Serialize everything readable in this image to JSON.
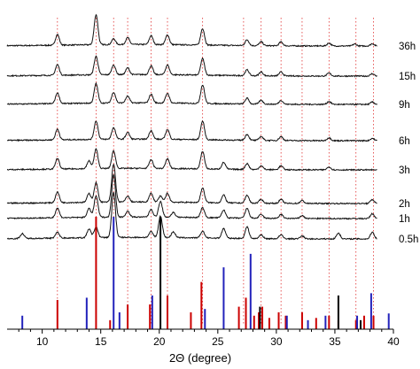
{
  "chart_data": {
    "type": "line",
    "xlabel": "2Θ (degree)",
    "xlim": [
      7,
      40
    ],
    "x_ticks": [
      10,
      15,
      20,
      25,
      30,
      35,
      40
    ],
    "grid": false,
    "legend": "none",
    "traces": [
      {
        "name": "36h",
        "peaks": [
          [
            11.3,
            0.55
          ],
          [
            14.6,
            1.55
          ],
          [
            16.1,
            0.3
          ],
          [
            17.3,
            0.35
          ],
          [
            19.3,
            0.45
          ],
          [
            20.7,
            0.5
          ],
          [
            23.7,
            0.85
          ],
          [
            27.5,
            0.3
          ],
          [
            28.7,
            0.2
          ],
          [
            30.4,
            0.2
          ],
          [
            34.5,
            0.15
          ],
          [
            36.7,
            0.1
          ],
          [
            38.2,
            0.12
          ]
        ]
      },
      {
        "name": "15h",
        "peaks": [
          [
            11.3,
            0.55
          ],
          [
            14.6,
            0.95
          ],
          [
            16.1,
            0.5
          ],
          [
            17.3,
            0.35
          ],
          [
            19.3,
            0.45
          ],
          [
            20.7,
            0.5
          ],
          [
            23.7,
            0.85
          ],
          [
            27.5,
            0.3
          ],
          [
            28.7,
            0.2
          ],
          [
            30.4,
            0.2
          ],
          [
            34.5,
            0.15
          ],
          [
            38.2,
            0.12
          ]
        ]
      },
      {
        "name": "9h",
        "peaks": [
          [
            11.3,
            0.55
          ],
          [
            14.6,
            1.0
          ],
          [
            16.1,
            0.55
          ],
          [
            17.3,
            0.35
          ],
          [
            19.3,
            0.45
          ],
          [
            20.7,
            0.5
          ],
          [
            23.7,
            0.95
          ],
          [
            27.5,
            0.3
          ],
          [
            28.7,
            0.2
          ],
          [
            30.4,
            0.2
          ],
          [
            34.5,
            0.15
          ],
          [
            38.2,
            0.12
          ]
        ]
      },
      {
        "name": "6h",
        "peaks": [
          [
            11.3,
            0.55
          ],
          [
            14.6,
            0.95
          ],
          [
            16.1,
            0.6
          ],
          [
            17.3,
            0.35
          ],
          [
            19.3,
            0.45
          ],
          [
            20.7,
            0.5
          ],
          [
            23.7,
            0.95
          ],
          [
            27.5,
            0.3
          ],
          [
            28.7,
            0.2
          ],
          [
            30.4,
            0.2
          ],
          [
            34.5,
            0.15
          ],
          [
            38.2,
            0.12
          ]
        ]
      },
      {
        "name": "3h",
        "peaks": [
          [
            11.3,
            0.55
          ],
          [
            14.0,
            0.4
          ],
          [
            14.6,
            1.0
          ],
          [
            16.1,
            0.9
          ],
          [
            19.3,
            0.45
          ],
          [
            20.7,
            0.5
          ],
          [
            23.7,
            0.9
          ],
          [
            25.5,
            0.35
          ],
          [
            27.5,
            0.3
          ],
          [
            28.7,
            0.2
          ],
          [
            30.4,
            0.2
          ],
          [
            34.5,
            0.15
          ]
        ]
      },
      {
        "name": "2h",
        "peaks": [
          [
            11.3,
            0.55
          ],
          [
            14.0,
            0.45
          ],
          [
            14.6,
            1.0
          ],
          [
            16.1,
            1.95
          ],
          [
            17.3,
            0.3
          ],
          [
            19.3,
            0.45
          ],
          [
            20.1,
            0.3
          ],
          [
            20.7,
            0.45
          ],
          [
            23.7,
            0.75
          ],
          [
            25.5,
            0.4
          ],
          [
            27.5,
            0.4
          ],
          [
            28.7,
            0.2
          ],
          [
            30.4,
            0.2
          ],
          [
            32.2,
            0.15
          ],
          [
            38.2,
            0.2
          ]
        ]
      },
      {
        "name": "1h",
        "peaks": [
          [
            11.3,
            0.5
          ],
          [
            14.0,
            0.45
          ],
          [
            14.6,
            1.1
          ],
          [
            16.1,
            2.2
          ],
          [
            17.3,
            0.3
          ],
          [
            19.3,
            0.4
          ],
          [
            20.1,
            0.8
          ],
          [
            21.2,
            0.25
          ],
          [
            23.7,
            0.5
          ],
          [
            25.5,
            0.4
          ],
          [
            27.5,
            0.5
          ],
          [
            28.7,
            0.2
          ],
          [
            30.4,
            0.2
          ],
          [
            32.2,
            0.15
          ],
          [
            38.2,
            0.25
          ]
        ]
      },
      {
        "name": "0.5h",
        "peaks": [
          [
            8.3,
            0.25
          ],
          [
            11.3,
            0.3
          ],
          [
            14.0,
            0.45
          ],
          [
            14.6,
            0.55
          ],
          [
            16.1,
            2.3
          ],
          [
            19.3,
            0.3
          ],
          [
            20.1,
            1.1
          ],
          [
            21.2,
            0.3
          ],
          [
            23.7,
            0.35
          ],
          [
            25.5,
            0.5
          ],
          [
            27.5,
            0.6
          ],
          [
            28.7,
            0.2
          ],
          [
            30.4,
            0.2
          ],
          [
            32.2,
            0.15
          ],
          [
            35.3,
            0.3
          ],
          [
            38.2,
            0.35
          ]
        ]
      }
    ],
    "dotted_reference_x": [
      11.3,
      14.6,
      16.1,
      17.3,
      19.3,
      20.7,
      23.7,
      27.2,
      28.7,
      30.4,
      32.2,
      34.5,
      36.8,
      38.3
    ],
    "reference_sticks": [
      {
        "color": "#cc0000",
        "lines": [
          [
            11.3,
            0.26
          ],
          [
            14.6,
            1.0
          ],
          [
            15.8,
            0.08
          ],
          [
            17.3,
            0.22
          ],
          [
            19.2,
            0.22
          ],
          [
            20.7,
            0.3
          ],
          [
            22.7,
            0.15
          ],
          [
            23.6,
            0.42
          ],
          [
            26.8,
            0.2
          ],
          [
            27.4,
            0.28
          ],
          [
            28.1,
            0.12
          ],
          [
            28.5,
            0.15
          ],
          [
            28.8,
            0.2
          ],
          [
            29.4,
            0.1
          ],
          [
            30.2,
            0.15
          ],
          [
            30.8,
            0.12
          ],
          [
            32.2,
            0.15
          ],
          [
            33.4,
            0.1
          ],
          [
            34.5,
            0.12
          ],
          [
            35.3,
            0.08
          ],
          [
            36.8,
            0.08
          ],
          [
            37.5,
            0.12
          ],
          [
            38.3,
            0.12
          ]
        ]
      },
      {
        "color": "#2222bb",
        "lines": [
          [
            8.3,
            0.12
          ],
          [
            13.8,
            0.28
          ],
          [
            16.1,
            1.0
          ],
          [
            16.6,
            0.15
          ],
          [
            19.4,
            0.3
          ],
          [
            23.9,
            0.18
          ],
          [
            25.5,
            0.55
          ],
          [
            27.8,
            0.67
          ],
          [
            30.9,
            0.12
          ],
          [
            32.7,
            0.08
          ],
          [
            34.2,
            0.12
          ],
          [
            36.9,
            0.12
          ],
          [
            38.1,
            0.32
          ],
          [
            39.6,
            0.14
          ]
        ]
      },
      {
        "color": "#000000",
        "lines": [
          [
            20.1,
            1.0
          ],
          [
            28.6,
            0.2
          ],
          [
            35.3,
            0.3
          ],
          [
            37.2,
            0.08
          ]
        ]
      }
    ]
  }
}
